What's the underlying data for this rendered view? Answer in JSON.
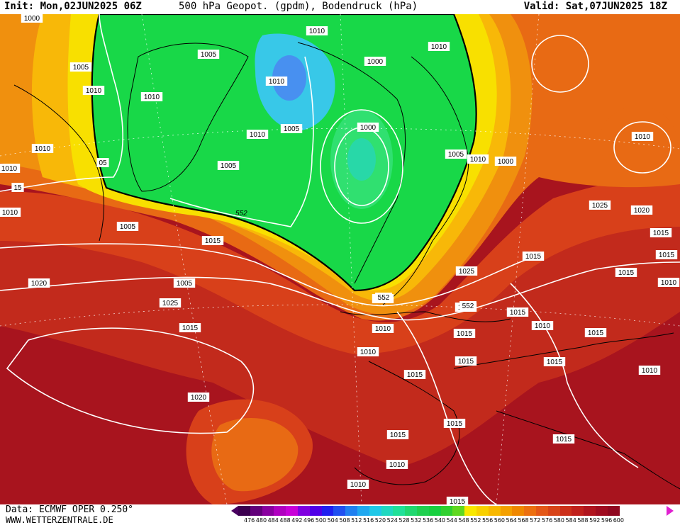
{
  "header": {
    "init": "Init: Mon,02JUN2025 06Z",
    "title": "500 hPa Geopot. (gpdm), Bodendruck (hPa)",
    "valid": "Valid: Sat,07JUN2025 18Z"
  },
  "footer": {
    "data_source": "Data: ECMWF OPER 0.250°",
    "url": "WWW.WETTERZENTRALE.DE"
  },
  "contour_label_552": "552",
  "isobar_labels": [
    "1000",
    "1010",
    "1005",
    "1000",
    "1010",
    "1005",
    "1010",
    "1010",
    "1010",
    "1000",
    "1005",
    "1010",
    "1005",
    "1010",
    "1000",
    "1005",
    "1010",
    "1010",
    "05",
    "1010",
    "15",
    "1010",
    "1005",
    "1015",
    "1025",
    "1020",
    "1025",
    "1015",
    "1005",
    "1020",
    "1015",
    "1025",
    "1015",
    "1015",
    "1015",
    "1010",
    "1015",
    "1015",
    "1015",
    "1015",
    "1010",
    "1015",
    "1015",
    "1010",
    "1015",
    "1015",
    "1010",
    "1010",
    "1015",
    "1015",
    "1010",
    "1010",
    "552",
    "552",
    "1010",
    "1020",
    "1015",
    "1015"
  ],
  "colors": {
    "deep_red": "#a8141e",
    "red": "#c22a1c",
    "red_orange": "#d8401a",
    "orange": "#e86a14",
    "light_orange": "#f0900e",
    "amber": "#f8b808",
    "yellow": "#f8e000",
    "green": "#18d848",
    "light_green": "#30e070",
    "cyan": "#38c8e8",
    "blue": "#4890f0"
  },
  "legend": {
    "values": [
      "476",
      "480",
      "484",
      "488",
      "492",
      "496",
      "500",
      "504",
      "508",
      "512",
      "516",
      "520",
      "524",
      "528",
      "532",
      "536",
      "540",
      "544",
      "548",
      "552",
      "556",
      "560",
      "564",
      "568",
      "572",
      "576",
      "580",
      "584",
      "588",
      "592",
      "596",
      "600"
    ],
    "colors": [
      "#3c0050",
      "#62007a",
      "#8a00a0",
      "#b000c0",
      "#c800d8",
      "#8000e0",
      "#5000e8",
      "#2020f0",
      "#2050f0",
      "#2080f0",
      "#20a8f0",
      "#20c8e8",
      "#20d8c0",
      "#20e098",
      "#20d870",
      "#20d050",
      "#18d040",
      "#30d030",
      "#60d820",
      "#f8e800",
      "#f8d000",
      "#f8b800",
      "#f4a000",
      "#f08800",
      "#ec7010",
      "#e45818",
      "#d84418",
      "#cc301a",
      "#c0201c",
      "#b0141e",
      "#a00c20",
      "#900820"
    ]
  }
}
